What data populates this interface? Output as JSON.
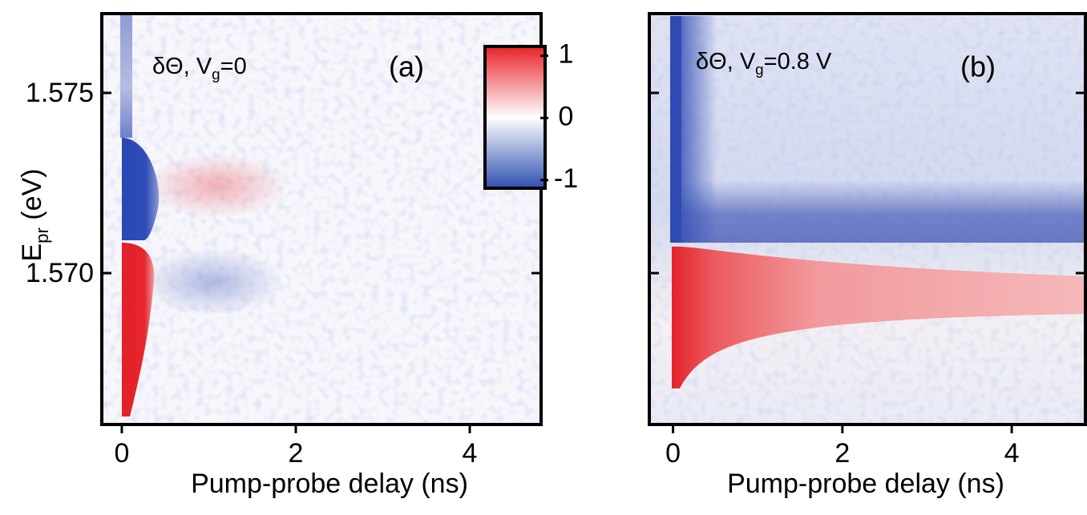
{
  "chart_data": [
    {
      "type": "heatmap",
      "annotation": {
        "text": "δΘ, V",
        "sub": "g",
        "after": "=0"
      },
      "panel_label": "(a)",
      "x_label": "Pump-probe delay (ns)",
      "y_label": {
        "text": "E",
        "sub": "pr",
        "after": " (eV)"
      },
      "xlim": [
        -0.23,
        4.82
      ],
      "xticks": [
        0,
        2,
        4
      ],
      "ylim": [
        1.5658,
        1.5772
      ],
      "yticks": [
        {
          "value": 1.575,
          "label": "1.575"
        },
        {
          "value": 1.57,
          "label": "1.570"
        }
      ],
      "show_ytick_labels": true,
      "colorbar": {
        "lim": [
          -1.13,
          1.15
        ],
        "ticks": [
          1,
          0,
          -1
        ],
        "colors": [
          "#2d4fb0",
          "#ffffff",
          "#e8222a"
        ]
      }
    },
    {
      "type": "heatmap",
      "annotation": {
        "text": "δΘ, V",
        "sub": "g",
        "after": "=0.8 V"
      },
      "panel_label": "(b)",
      "x_label": "Pump-probe delay (ns)",
      "xlim": [
        -0.28,
        4.87
      ],
      "xticks": [
        0,
        2,
        4
      ],
      "ylim": [
        1.5658,
        1.5772
      ],
      "yticks": [
        1.575,
        1.57
      ],
      "show_ytick_labels": false
    }
  ]
}
